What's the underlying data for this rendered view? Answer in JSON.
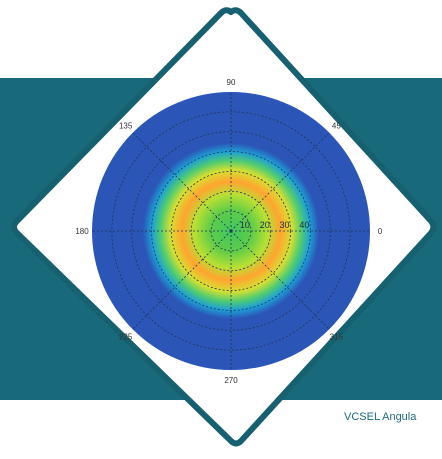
{
  "caption": "VCSEL Angula",
  "colors": {
    "teal_band": "#18697a",
    "diamond_border": "#17606f",
    "plot_background": "#2b56b8",
    "caption_text": "#1b6b80"
  },
  "chart_data": {
    "type": "heatmap",
    "projection": "polar",
    "title": "",
    "angular_ticks": [
      "90",
      "45",
      "0",
      "315",
      "270",
      "225",
      "180",
      "135"
    ],
    "angular_tick_degrees": [
      90,
      45,
      0,
      315,
      270,
      225,
      180,
      135
    ],
    "radial_ticks": [
      "10",
      "20",
      "30",
      "40"
    ],
    "radial_tick_values": [
      10,
      20,
      30,
      40
    ],
    "radial_max": 70,
    "intensity_profile": {
      "shape": "rounded-square",
      "colormap": "jet",
      "levels": [
        {
          "radius": 0,
          "color": "#40c860"
        },
        {
          "radius": 14,
          "color": "#60cc48"
        },
        {
          "radius": 24,
          "color": "#b8e034"
        },
        {
          "radius": 32,
          "color": "#ffa430"
        },
        {
          "radius": 40,
          "color": "#d8e030"
        },
        {
          "radius": 46,
          "color": "#50cc70"
        },
        {
          "radius": 52,
          "color": "#1ea0d4"
        },
        {
          "radius": 58,
          "color": "#2b56b8"
        }
      ]
    },
    "grid": true
  }
}
